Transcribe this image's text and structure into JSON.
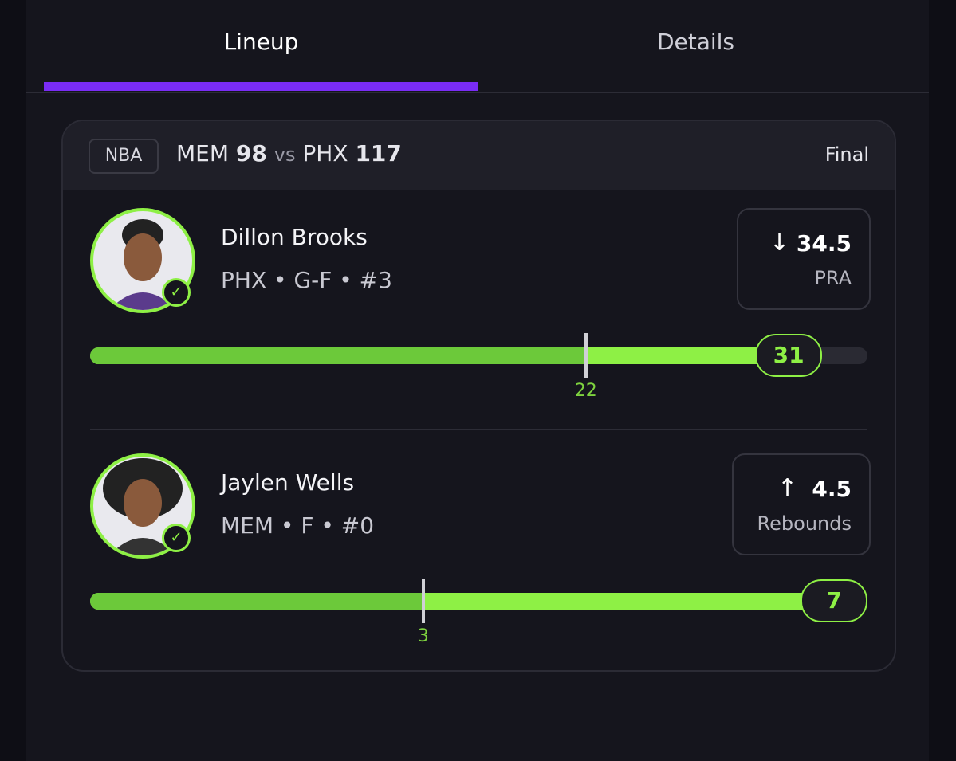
{
  "tabs": [
    {
      "label": "Lineup",
      "active": true
    },
    {
      "label": "Details",
      "active": false
    }
  ],
  "game": {
    "league": "NBA",
    "away_team": "MEM",
    "away_score": 98,
    "vs": "vs",
    "home_team": "PHX",
    "home_score": 117,
    "status": "Final"
  },
  "players": [
    {
      "name": "Dillon Brooks",
      "info": "PHX • G-F • #3",
      "direction": "down",
      "line": 34.5,
      "stat": "PRA",
      "actual": 31,
      "marker": 22
    },
    {
      "name": "Jaylen Wells",
      "info": "MEM • F • #0",
      "direction": "up",
      "line": 4.5,
      "stat": "Rebounds",
      "actual": 7,
      "marker": 3
    }
  ]
}
